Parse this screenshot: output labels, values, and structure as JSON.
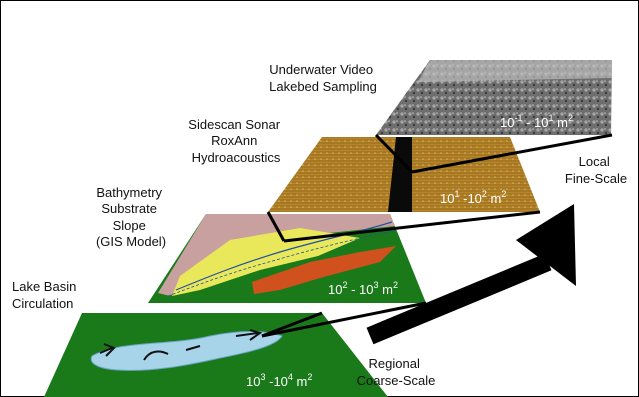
{
  "layers": [
    {
      "id": "video",
      "labels": [
        "Underwater Video",
        "Lakebed Sampling"
      ],
      "scale": {
        "base1": "10",
        "exp1": "-1",
        "sep": " - ",
        "base2": "10",
        "exp2": "1",
        "unit": " m",
        "unit_exp": "2"
      }
    },
    {
      "id": "sonar",
      "labels": [
        "Sidescan Sonar",
        "RoxAnn",
        "Hydroacoustics"
      ],
      "scale": {
        "base1": "10",
        "exp1": "1",
        "sep": " -",
        "base2": "10",
        "exp2": "2",
        "unit": " m",
        "unit_exp": "2"
      }
    },
    {
      "id": "bathymetry",
      "labels": [
        "Bathymetry",
        "Substrate",
        "Slope",
        "(GIS Model)"
      ],
      "scale": {
        "base1": "10",
        "exp1": "2",
        "sep": " - ",
        "base2": "10",
        "exp2": "3",
        "unit": " m",
        "unit_exp": "2"
      }
    },
    {
      "id": "basin",
      "labels": [
        "Lake Basin",
        "Circulation"
      ],
      "scale": {
        "base1": "10",
        "exp1": "3",
        "sep": " -",
        "base2": "10",
        "exp2": "4",
        "unit": " m",
        "unit_exp": "2"
      }
    }
  ],
  "arrow": {
    "top_label": [
      "Local",
      "Fine-Scale"
    ],
    "bottom_label": [
      "Regional",
      "Coarse-Scale"
    ]
  },
  "colors": {
    "basin_green": "#1a7a1a",
    "lake_blue": "#a8d4ea",
    "bathy_pink": "#c9a0a0",
    "bathy_yellow": "#e8e85a",
    "bathy_orange": "#d0501e",
    "sonar_brown": "#b8862a",
    "video_gray": "#7a7a7a"
  }
}
